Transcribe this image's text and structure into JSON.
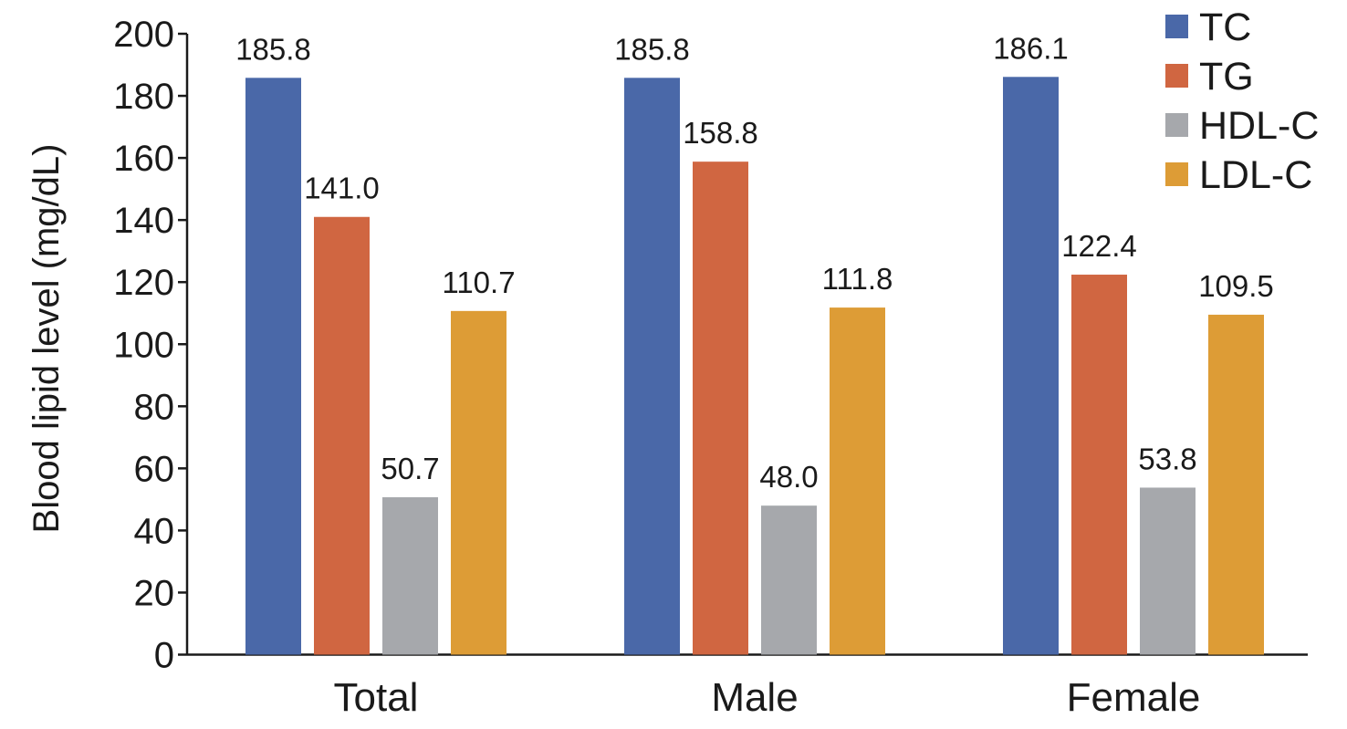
{
  "chart_data": {
    "type": "bar",
    "title": "",
    "xlabel": "",
    "ylabel": "Blood lipid level (mg/dL)",
    "ylim": [
      0,
      200
    ],
    "yticks": [
      0,
      20,
      40,
      60,
      80,
      100,
      120,
      140,
      160,
      180,
      200
    ],
    "categories": [
      "Total",
      "Male",
      "Female"
    ],
    "series": [
      {
        "name": "TC",
        "color": "#4a68a8",
        "values": [
          185.8,
          185.8,
          186.1
        ],
        "labels": [
          "185.8",
          "185.8",
          "186.1"
        ]
      },
      {
        "name": "TG",
        "color": "#d06641",
        "values": [
          141.0,
          158.8,
          122.4
        ],
        "labels": [
          "141.0",
          "158.8",
          "122.4"
        ]
      },
      {
        "name": "HDL-C",
        "color": "#a6a8ac",
        "values": [
          50.7,
          48.0,
          53.8
        ],
        "labels": [
          "50.7",
          "48.0",
          "53.8"
        ]
      },
      {
        "name": "LDL-C",
        "color": "#dd9c36",
        "values": [
          110.7,
          111.8,
          109.5
        ],
        "labels": [
          "110.7",
          "111.8",
          "109.5"
        ]
      }
    ],
    "legend": "top-right",
    "grid": false
  }
}
